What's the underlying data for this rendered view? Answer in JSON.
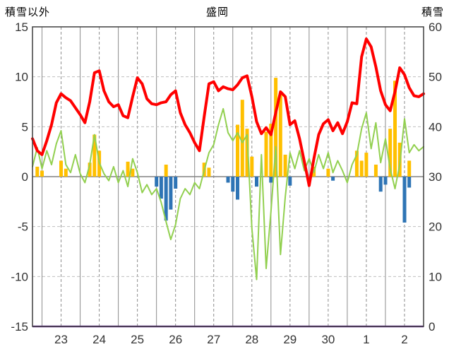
{
  "chart_data": {
    "type": "line+bar combo (weather chart)",
    "title": "盛岡",
    "left_axis": {
      "label": "積雪以外",
      "min": -15,
      "max": 15,
      "tick_interval": 5
    },
    "right_axis": {
      "label": "積雪",
      "min": 0,
      "max": 60,
      "tick_interval": 10
    },
    "x_axis": {
      "labels": [
        "23",
        "24",
        "25",
        "26",
        "27",
        "28",
        "29",
        "30",
        "1",
        "2"
      ],
      "label_hours": [
        18,
        42,
        66,
        90,
        114,
        138,
        162,
        186,
        210,
        234
      ],
      "total_hours": 246,
      "solid_grid_start_hour": 6,
      "solid_grid_interval_hours": 24,
      "grid_on": true
    },
    "colors": {
      "red": "#FF0000",
      "green": "#92D050",
      "orange": "#FFC000",
      "blue": "#2E74B5",
      "purple": "#7030A0",
      "grid_solid": "#8C8C8C",
      "grid_dashed": "#BFBFBF",
      "zero_line": "#808080",
      "border": "#3F3F3F",
      "text": "#333333",
      "background": "#FFFFFF"
    },
    "legend": "none visible",
    "series": [
      {
        "name": "orange-bars",
        "type": "bar",
        "axis": "left",
        "color": "#FFC000",
        "points": [
          [
            3,
            1.0
          ],
          [
            6,
            0.6
          ],
          [
            18,
            1.6
          ],
          [
            21,
            0.8
          ],
          [
            36,
            1.4
          ],
          [
            39,
            4.2
          ],
          [
            42,
            2.6
          ],
          [
            60,
            1.5
          ],
          [
            63,
            0.8
          ],
          [
            84,
            1.2
          ],
          [
            108,
            1.4
          ],
          [
            111,
            0.9
          ],
          [
            129,
            5.2
          ],
          [
            132,
            7.7
          ],
          [
            135,
            4.8
          ],
          [
            138,
            2.0
          ],
          [
            147,
            4.5
          ],
          [
            150,
            5.3
          ],
          [
            153,
            9.9
          ],
          [
            156,
            8.2
          ],
          [
            159,
            2.2
          ],
          [
            177,
            1.0
          ],
          [
            186,
            0.8
          ],
          [
            204,
            2.6
          ],
          [
            207,
            1.6
          ],
          [
            210,
            2.4
          ],
          [
            216,
            1.2
          ],
          [
            225,
            4.8
          ],
          [
            228,
            9.6
          ],
          [
            231,
            3.4
          ],
          [
            237,
            1.6
          ]
        ]
      },
      {
        "name": "blue-bars",
        "type": "bar",
        "axis": "left",
        "color": "#2E74B5",
        "points": [
          [
            78,
            -1.0
          ],
          [
            81,
            -2.2
          ],
          [
            84,
            -4.4
          ],
          [
            87,
            -3.3
          ],
          [
            90,
            -1.2
          ],
          [
            123,
            -0.6
          ],
          [
            126,
            -1.5
          ],
          [
            129,
            -2.3
          ],
          [
            141,
            -1.0
          ],
          [
            150,
            -0.6
          ],
          [
            162,
            -0.9
          ],
          [
            189,
            -0.4
          ],
          [
            219,
            -1.5
          ],
          [
            222,
            -0.8
          ],
          [
            234,
            -4.6
          ],
          [
            237,
            -1.1
          ]
        ]
      },
      {
        "name": "purple-line",
        "type": "constant-line",
        "axis": "right",
        "color": "#7030A0",
        "width": 2.5,
        "value": 0
      },
      {
        "name": "green-line",
        "type": "line",
        "axis": "left",
        "color": "#92D050",
        "width": 2,
        "x_start_hour": 0,
        "x_step_hours": 3,
        "values": [
          1.0,
          2.9,
          0.8,
          2.6,
          1.2,
          3.3,
          4.6,
          1.2,
          0.4,
          2.2,
          0.3,
          -0.6,
          1.2,
          4.2,
          1.4,
          0.3,
          -0.4,
          1.0,
          -0.6,
          0.6,
          -1.0,
          1.8,
          0.4,
          -1.6,
          -0.8,
          -1.8,
          -1.2,
          -2.6,
          -4.5,
          -6.3,
          -4.8,
          -2.2,
          -1.2,
          -1.8,
          -0.6,
          -1.2,
          0.6,
          2.4,
          3.2,
          5.2,
          6.8,
          4.4,
          3.6,
          4.4,
          3.4,
          4.2,
          -5.2,
          -10.3,
          2.2,
          -9.2,
          -3.5,
          3.0,
          -7.8,
          -2.0,
          2.4,
          0.8,
          2.6,
          0.6,
          1.8,
          0.4,
          2.2,
          0.8,
          2.4,
          0.4,
          1.6,
          0.6,
          -0.6,
          1.2,
          2.2,
          4.8,
          6.4,
          2.8,
          5.4,
          1.4,
          3.8,
          0.8,
          -1.2,
          1.2,
          5.8,
          2.4,
          3.2,
          2.6,
          3.0
        ]
      },
      {
        "name": "red-line",
        "type": "line",
        "axis": "left",
        "color": "#FF0000",
        "width": 4,
        "x_start_hour": 0,
        "x_step_hours": 3,
        "values": [
          3.8,
          2.6,
          2.2,
          3.6,
          5.2,
          7.4,
          8.3,
          7.9,
          7.6,
          6.9,
          6.2,
          5.4,
          7.5,
          10.4,
          10.6,
          8.6,
          7.5,
          7.0,
          7.2,
          6.1,
          5.9,
          8.0,
          9.9,
          9.3,
          7.8,
          7.3,
          7.2,
          7.4,
          7.5,
          8.2,
          8.6,
          6.4,
          5.2,
          4.4,
          3.4,
          2.6,
          6.0,
          9.3,
          9.5,
          8.6,
          9.0,
          8.8,
          8.7,
          9.2,
          9.9,
          10.1,
          8.0,
          5.5,
          4.3,
          4.9,
          4.2,
          6.4,
          8.5,
          8.0,
          5.2,
          5.6,
          3.8,
          1.5,
          -0.9,
          1.8,
          4.2,
          5.3,
          5.7,
          4.6,
          5.4,
          4.3,
          5.5,
          7.4,
          7.3,
          12.0,
          13.8,
          13.0,
          11.0,
          8.6,
          7.2,
          6.6,
          8.5,
          10.9,
          10.2,
          8.9,
          8.1,
          8.0,
          8.3
        ]
      }
    ]
  }
}
